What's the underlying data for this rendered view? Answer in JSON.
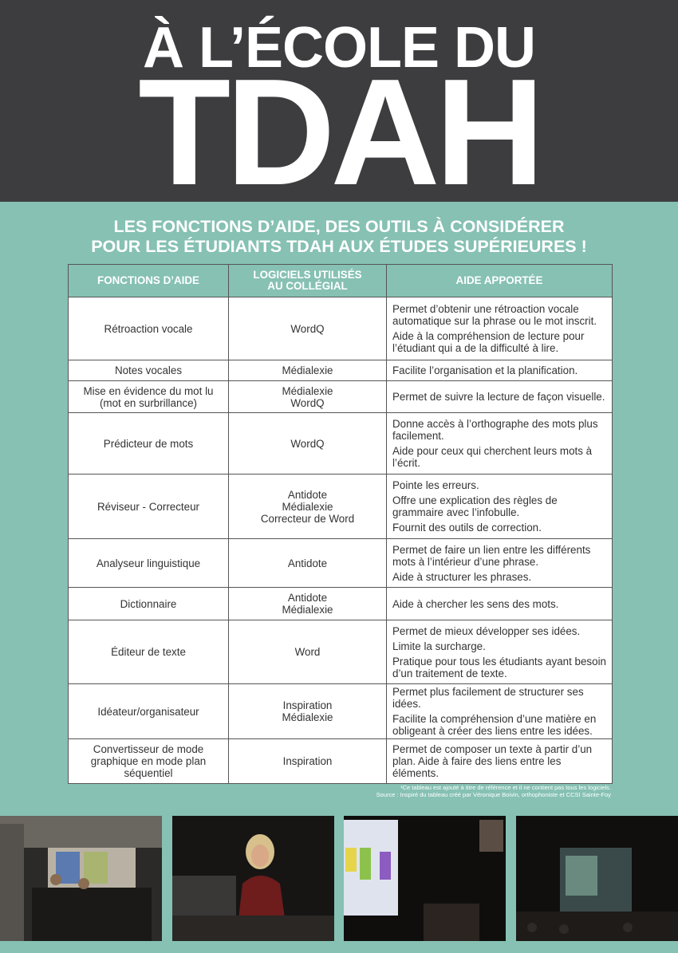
{
  "header": {
    "title_line1": "À L’ÉCOLE DU",
    "title_line2": "TDAH"
  },
  "subtitle": [
    "LES FONCTIONS D’AIDE, DES OUTILS À CONSIDÉRER",
    "POUR LES ÉTUDIANTS TDAH AUX ÉTUDES SUPÉRIEURES !"
  ],
  "table": {
    "headers": [
      [
        "FONCTIONS D’AIDE"
      ],
      [
        "LOGICIELS UTILISÉS",
        "AU COLLÉGIAL"
      ],
      [
        "AIDE APPORTÉE"
      ]
    ],
    "rows": [
      {
        "function": [
          "Rétroaction vocale"
        ],
        "software": [
          "WordQ"
        ],
        "help": [
          "Permet d’obtenir une rétroaction vocale automatique sur la phrase ou le mot inscrit.",
          "Aide à la compréhension de lecture pour l’étudiant qui a de la difficulté à lire."
        ]
      },
      {
        "function": [
          "Notes vocales"
        ],
        "software": [
          "Médialexie"
        ],
        "help": [
          "Facilite l’organisation et la planification."
        ]
      },
      {
        "function": [
          "Mise en évidence du mot lu",
          "(mot en surbrillance)"
        ],
        "software": [
          "Médialexie",
          "WordQ"
        ],
        "help": [
          "Permet de suivre la lecture de façon visuelle."
        ]
      },
      {
        "function": [
          "Prédicteur de mots"
        ],
        "software": [
          "WordQ"
        ],
        "help": [
          "Donne accès à l’orthographe des mots plus facilement.",
          "Aide pour ceux qui cherchent leurs mots à l’écrit."
        ]
      },
      {
        "function": [
          "Réviseur - Correcteur"
        ],
        "software": [
          "Antidote",
          "Médialexie",
          "Correcteur de Word"
        ],
        "help": [
          "Pointe les erreurs.",
          "Offre une explication des règles de grammaire avec l’infobulle.",
          "Fournit des outils de correction."
        ]
      },
      {
        "function": [
          "Analyseur linguistique"
        ],
        "software": [
          "Antidote"
        ],
        "help": [
          "Permet de faire un lien entre les différents mots à l’intérieur d’une phrase.",
          "Aide à structurer les phrases."
        ]
      },
      {
        "function": [
          "Dictionnaire"
        ],
        "software": [
          "Antidote",
          "Médialexie"
        ],
        "help": [
          "Aide à chercher les sens des mots."
        ]
      },
      {
        "function": [
          "Éditeur de texte"
        ],
        "software": [
          "Word"
        ],
        "help": [
          "Permet de mieux développer ses idées.",
          "Limite la surcharge.",
          "Pratique pour tous les étudiants ayant besoin d’un traitement de texte."
        ]
      },
      {
        "function": [
          "Idéateur/organisateur"
        ],
        "software": [
          "Inspiration",
          "Médialexie"
        ],
        "help": [
          "Permet plus facilement de structurer ses idées.",
          "Facilite la compréhension d’une matière en obligeant à créer des liens entre les idées."
        ]
      },
      {
        "function": [
          "Convertisseur de mode",
          "graphique en mode plan",
          "séquentiel"
        ],
        "software": [
          "Inspiration"
        ],
        "help": [
          "Permet de composer un texte à partir d’un plan. Aide à faire des liens entre les éléments."
        ]
      }
    ]
  },
  "footnote": [
    "¹Ce tableau est ajouté à titre de référence et il ne contient pas tous les logiciels.",
    "Source : Inspiré du tableau créé par Véronique Boivin, orthophoniste et CCSI Sainte-Foy"
  ]
}
